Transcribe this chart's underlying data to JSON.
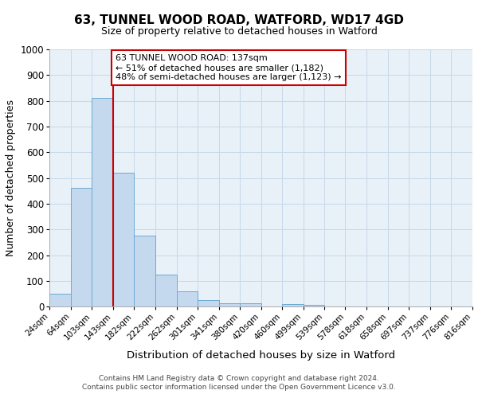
{
  "title": "63, TUNNEL WOOD ROAD, WATFORD, WD17 4GD",
  "subtitle": "Size of property relative to detached houses in Watford",
  "xlabel": "Distribution of detached houses by size in Watford",
  "ylabel": "Number of detached properties",
  "bar_color": "#c5d9ee",
  "bar_edge_color": "#6aaad4",
  "grid_color": "#c8d8e8",
  "background_color": "#e8f0f8",
  "fig_background": "#ffffff",
  "bins": [
    24,
    64,
    103,
    143,
    182,
    222,
    262,
    301,
    341,
    380,
    420,
    460,
    499,
    539,
    578,
    618,
    658,
    697,
    737,
    776,
    816
  ],
  "bin_labels": [
    "24sqm",
    "64sqm",
    "103sqm",
    "143sqm",
    "182sqm",
    "222sqm",
    "262sqm",
    "301sqm",
    "341sqm",
    "380sqm",
    "420sqm",
    "460sqm",
    "499sqm",
    "539sqm",
    "578sqm",
    "618sqm",
    "658sqm",
    "697sqm",
    "737sqm",
    "776sqm",
    "816sqm"
  ],
  "bar_heights": [
    50,
    460,
    810,
    520,
    275,
    125,
    60,
    25,
    12,
    12,
    0,
    10,
    8,
    0,
    0,
    0,
    0,
    0,
    0,
    0
  ],
  "property_line_x": 143,
  "property_line_color": "#cc0000",
  "ylim": [
    0,
    1000
  ],
  "yticks": [
    0,
    100,
    200,
    300,
    400,
    500,
    600,
    700,
    800,
    900,
    1000
  ],
  "annotation_text": "63 TUNNEL WOOD ROAD: 137sqm\n← 51% of detached houses are smaller (1,182)\n48% of semi-detached houses are larger (1,123) →",
  "annotation_box_color": "#ffffff",
  "annotation_box_edge_color": "#cc0000",
  "footer_line1": "Contains HM Land Registry data © Crown copyright and database right 2024.",
  "footer_line2": "Contains public sector information licensed under the Open Government Licence v3.0."
}
